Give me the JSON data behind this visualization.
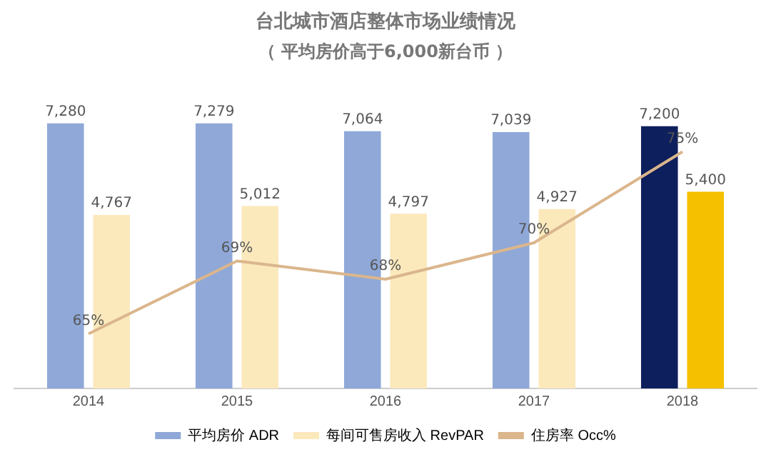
{
  "chart_data": {
    "type": "bar",
    "title": "台北城市酒店整体市场业绩情况",
    "subtitle": "（ 平均房价高于6,000新台币 ）",
    "categories": [
      "2014",
      "2015",
      "2016",
      "2017",
      "2018"
    ],
    "series": [
      {
        "name": "平均房价 ADR",
        "color": "#8fa8d8",
        "colors": [
          "#8fa8d8",
          "#8fa8d8",
          "#8fa8d8",
          "#8fa8d8",
          "#0d1f5c"
        ],
        "values": [
          7280,
          7279,
          7064,
          7039,
          7200
        ],
        "value_labels": [
          "7,280",
          "7,279",
          "7,064",
          "7,039",
          "7,200"
        ]
      },
      {
        "name": "每间可售房收入 RevPAR",
        "color": "#fbe9bc",
        "colors": [
          "#fbe9bc",
          "#fbe9bc",
          "#fbe9bc",
          "#fbe9bc",
          "#f5c000"
        ],
        "values": [
          4767,
          5012,
          4797,
          4927,
          5400
        ],
        "value_labels": [
          "4,767",
          "5,012",
          "4,797",
          "4,927",
          "5,400"
        ]
      },
      {
        "name": "住房率 Occ%",
        "type": "line",
        "axis": "y2",
        "color": "#dbb68c",
        "values": [
          65,
          69,
          68,
          70,
          75
        ],
        "value_labels": [
          "65%",
          "69%",
          "68%",
          "70%",
          "75%"
        ]
      }
    ],
    "tick_labels": "x",
    "grid": false,
    "legend": "bottom",
    "marker": "none"
  }
}
